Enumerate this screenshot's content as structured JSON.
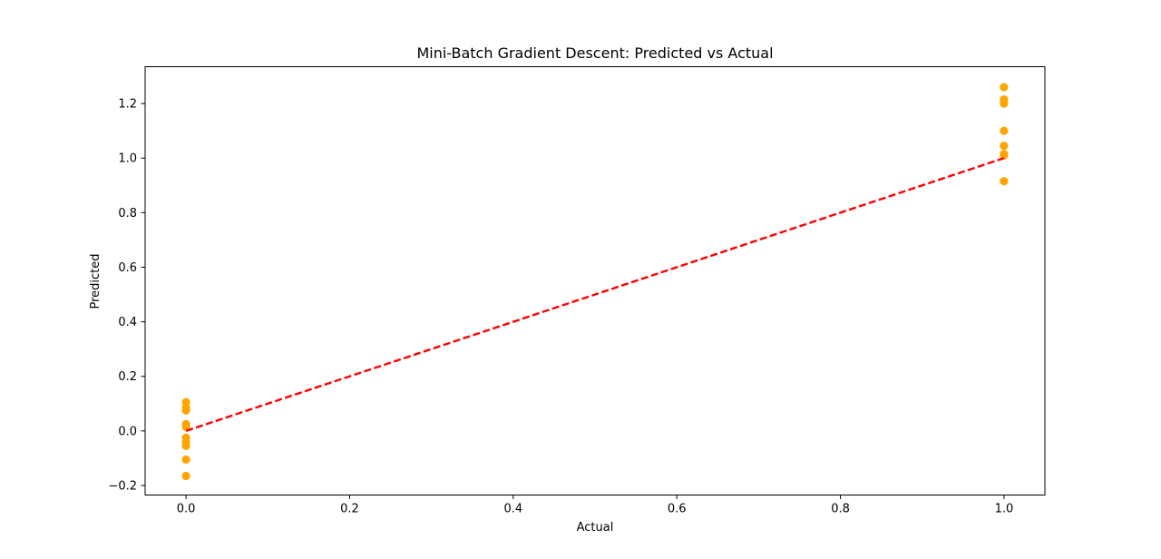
{
  "chart_data": {
    "type": "scatter",
    "title": "Mini-Batch Gradient Descent: Predicted vs Actual",
    "xlabel": "Actual",
    "ylabel": "Predicted",
    "xlim": [
      -0.05,
      1.05
    ],
    "ylim": [
      -0.235,
      1.335
    ],
    "xticks": [
      0.0,
      0.2,
      0.4,
      0.6,
      0.8,
      1.0
    ],
    "xtick_labels": [
      "0.0",
      "0.2",
      "0.4",
      "0.6",
      "0.8",
      "1.0"
    ],
    "yticks": [
      -0.2,
      0.0,
      0.2,
      0.4,
      0.6,
      0.8,
      1.0,
      1.2
    ],
    "ytick_labels": [
      "−0.2",
      "0.0",
      "0.2",
      "0.4",
      "0.6",
      "0.8",
      "1.0",
      "1.2"
    ],
    "grid": false,
    "series": [
      {
        "type": "scatter",
        "color": "#ffa500",
        "points": [
          {
            "x": 0,
            "y": 0.105
          },
          {
            "x": 0,
            "y": 0.085
          },
          {
            "x": 0,
            "y": 0.075
          },
          {
            "x": 0,
            "y": 0.025
          },
          {
            "x": 0,
            "y": 0.015
          },
          {
            "x": 0,
            "y": -0.025
          },
          {
            "x": 0,
            "y": -0.04
          },
          {
            "x": 0,
            "y": -0.055
          },
          {
            "x": 0,
            "y": -0.105
          },
          {
            "x": 0,
            "y": -0.165
          },
          {
            "x": 1,
            "y": 1.26
          },
          {
            "x": 1,
            "y": 1.215
          },
          {
            "x": 1,
            "y": 1.2
          },
          {
            "x": 1,
            "y": 1.1
          },
          {
            "x": 1,
            "y": 1.045
          },
          {
            "x": 1,
            "y": 1.015
          },
          {
            "x": 1,
            "y": 1.01
          },
          {
            "x": 1,
            "y": 0.915
          }
        ]
      },
      {
        "type": "line",
        "style": "dashed",
        "color": "#ff0000",
        "points": [
          {
            "x": 0,
            "y": 0
          },
          {
            "x": 1,
            "y": 1
          }
        ]
      }
    ]
  }
}
